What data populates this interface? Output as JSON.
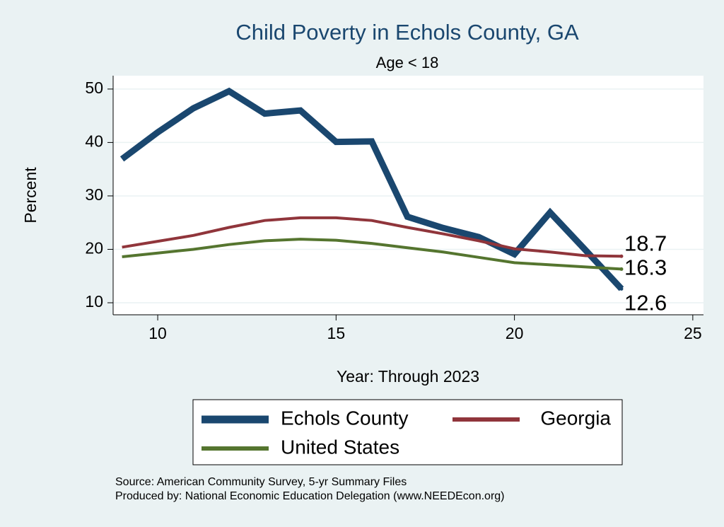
{
  "chart_data": {
    "type": "line",
    "title": "Child Poverty in Echols County, GA",
    "subtitle": "Age < 18",
    "x_label": "Year: Through 2023",
    "y_label": "Percent",
    "x": [
      9,
      10,
      11,
      12,
      13,
      14,
      15,
      16,
      17,
      18,
      19,
      20,
      21,
      22,
      23
    ],
    "series": [
      {
        "name": "Echols County",
        "color": "#1a476f",
        "values": [
          36.9,
          41.9,
          46.4,
          49.6,
          45.4,
          46.0,
          40.1,
          40.2,
          26.1,
          24.0,
          22.3,
          19.1,
          26.9,
          19.8,
          12.6
        ]
      },
      {
        "name": "Georgia",
        "color": "#90353b",
        "values": [
          20.4,
          21.5,
          22.6,
          24.1,
          25.4,
          25.9,
          25.9,
          25.4,
          24.1,
          22.9,
          21.6,
          20.1,
          19.5,
          18.8,
          18.7
        ]
      },
      {
        "name": "United States",
        "color": "#55752f",
        "values": [
          18.6,
          19.3,
          20.0,
          20.9,
          21.6,
          21.9,
          21.7,
          21.1,
          20.3,
          19.5,
          18.5,
          17.5,
          17.1,
          16.7,
          16.3
        ]
      }
    ],
    "xlim": [
      8.75,
      25.3
    ],
    "xticks": [
      10,
      15,
      20,
      25
    ],
    "ylim": [
      7.75,
      52.5
    ],
    "yticks": [
      10,
      20,
      30,
      40,
      50
    ],
    "grid": true,
    "notes": [
      "Source: American Community Survey, 5-yr Summary Files",
      "Produced by: National Economic Education Delegation (www.NEEDEcon.org)"
    ]
  }
}
